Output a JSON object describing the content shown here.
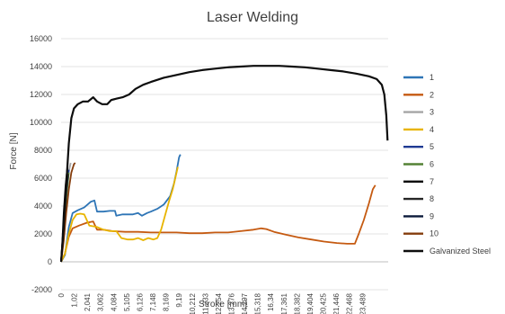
{
  "chart_data": {
    "type": "line",
    "title": "Laser Welding",
    "xlabel": "Stroke [mm]",
    "ylabel": "Force [N]",
    "xlim": [
      0,
      25.5
    ],
    "ylim": [
      -2000,
      16000
    ],
    "grid": true,
    "legend_position": "right",
    "y_ticks": [
      "-2000",
      "0",
      "2000",
      "4000",
      "6000",
      "8000",
      "10000",
      "12000",
      "14000",
      "16000"
    ],
    "x_ticks": [
      "0",
      "1,02",
      "2,041",
      "3,062",
      "4,084",
      "5,105",
      "6,126",
      "7,148",
      "8,169",
      "9,19",
      "10,212",
      "11,233",
      "12,254",
      "13,276",
      "14,297",
      "15,318",
      "16,34",
      "17,361",
      "18,382",
      "19,404",
      "20,425",
      "21,446",
      "22,468",
      "23,489"
    ],
    "series": [
      {
        "name": "1",
        "color": "#2e75b6",
        "points": [
          [
            0,
            0
          ],
          [
            0.3,
            500
          ],
          [
            0.6,
            2500
          ],
          [
            0.9,
            3500
          ],
          [
            1.3,
            3700
          ],
          [
            1.8,
            3900
          ],
          [
            2.3,
            4300
          ],
          [
            2.6,
            4400
          ],
          [
            2.8,
            3600
          ],
          [
            3.3,
            3600
          ],
          [
            3.8,
            3650
          ],
          [
            4.2,
            3650
          ],
          [
            4.3,
            3300
          ],
          [
            4.8,
            3400
          ],
          [
            5.2,
            3400
          ],
          [
            5.6,
            3400
          ],
          [
            6.0,
            3500
          ],
          [
            6.3,
            3300
          ],
          [
            6.7,
            3500
          ],
          [
            7.0,
            3600
          ],
          [
            7.5,
            3800
          ],
          [
            8.0,
            4100
          ],
          [
            8.5,
            4700
          ],
          [
            8.8,
            5600
          ],
          [
            9.0,
            6500
          ],
          [
            9.2,
            7500
          ],
          [
            9.3,
            7700
          ]
        ]
      },
      {
        "name": "2",
        "color": "#c55a11",
        "points": [
          [
            0,
            0
          ],
          [
            0.3,
            600
          ],
          [
            0.6,
            1800
          ],
          [
            0.9,
            2400
          ],
          [
            1.4,
            2600
          ],
          [
            2.0,
            2800
          ],
          [
            2.5,
            2900
          ],
          [
            2.8,
            2300
          ],
          [
            3.3,
            2300
          ],
          [
            4.0,
            2200
          ],
          [
            5.0,
            2150
          ],
          [
            6.0,
            2150
          ],
          [
            7.0,
            2100
          ],
          [
            8.0,
            2100
          ],
          [
            9.0,
            2100
          ],
          [
            10.0,
            2050
          ],
          [
            11.0,
            2050
          ],
          [
            12.0,
            2100
          ],
          [
            13.0,
            2100
          ],
          [
            14.0,
            2200
          ],
          [
            15.0,
            2300
          ],
          [
            15.6,
            2400
          ],
          [
            16.0,
            2350
          ],
          [
            16.6,
            2150
          ],
          [
            17.5,
            1950
          ],
          [
            18.5,
            1750
          ],
          [
            19.5,
            1600
          ],
          [
            20.5,
            1450
          ],
          [
            21.5,
            1350
          ],
          [
            22.3,
            1300
          ],
          [
            22.9,
            1300
          ],
          [
            23.2,
            2000
          ],
          [
            23.6,
            3000
          ],
          [
            24.0,
            4200
          ],
          [
            24.3,
            5200
          ],
          [
            24.5,
            5500
          ]
        ]
      },
      {
        "name": "3",
        "color": "#a5a5a5",
        "points": [
          [
            0,
            0
          ],
          [
            0.15,
            1500
          ],
          [
            0.3,
            3500
          ],
          [
            0.45,
            5000
          ],
          [
            0.6,
            6500
          ],
          [
            0.75,
            7100
          ]
        ]
      },
      {
        "name": "4",
        "color": "#e8b400",
        "points": [
          [
            0,
            0
          ],
          [
            0.3,
            600
          ],
          [
            0.6,
            2000
          ],
          [
            0.9,
            3000
          ],
          [
            1.2,
            3400
          ],
          [
            1.5,
            3450
          ],
          [
            1.8,
            3400
          ],
          [
            2.2,
            2600
          ],
          [
            2.8,
            2500
          ],
          [
            3.3,
            2300
          ],
          [
            3.8,
            2200
          ],
          [
            4.3,
            2200
          ],
          [
            4.7,
            1700
          ],
          [
            5.2,
            1600
          ],
          [
            5.6,
            1600
          ],
          [
            6.0,
            1700
          ],
          [
            6.4,
            1550
          ],
          [
            6.8,
            1700
          ],
          [
            7.2,
            1600
          ],
          [
            7.5,
            1700
          ],
          [
            7.8,
            2300
          ],
          [
            8.1,
            3300
          ],
          [
            8.4,
            4300
          ],
          [
            8.7,
            5200
          ],
          [
            9.0,
            6400
          ],
          [
            9.1,
            6800
          ]
        ]
      },
      {
        "name": "5",
        "color": "#1f3a93",
        "points": [
          [
            0,
            0
          ],
          [
            0.15,
            1600
          ],
          [
            0.3,
            3600
          ],
          [
            0.45,
            5300
          ],
          [
            0.6,
            6600
          ]
        ]
      },
      {
        "name": "6",
        "color": "#548235",
        "points": [
          [
            0,
            0
          ],
          [
            0.15,
            1500
          ],
          [
            0.3,
            3400
          ],
          [
            0.45,
            5100
          ],
          [
            0.6,
            6400
          ]
        ]
      },
      {
        "name": "7",
        "color": "#000000",
        "points": [
          [
            0,
            0
          ],
          [
            0.1,
            1500
          ],
          [
            0.2,
            3500
          ],
          [
            0.35,
            5500
          ],
          [
            0.5,
            6800
          ]
        ]
      },
      {
        "name": "8",
        "color": "#262626",
        "points": [
          [
            0,
            0
          ],
          [
            0.12,
            1400
          ],
          [
            0.25,
            3200
          ],
          [
            0.4,
            5000
          ],
          [
            0.55,
            6300
          ]
        ]
      },
      {
        "name": "9",
        "color": "#0b1a3a",
        "points": [
          [
            0,
            0
          ],
          [
            0.1,
            1300
          ],
          [
            0.22,
            3000
          ],
          [
            0.36,
            4800
          ],
          [
            0.5,
            6100
          ]
        ]
      },
      {
        "name": "10",
        "color": "#843c0c",
        "points": [
          [
            0,
            0
          ],
          [
            0.2,
            1500
          ],
          [
            0.4,
            3500
          ],
          [
            0.6,
            5200
          ],
          [
            0.8,
            6400
          ],
          [
            1.0,
            7000
          ],
          [
            1.1,
            7100
          ]
        ]
      },
      {
        "name": "Galvanized Steel",
        "color": "#0d0d0d",
        "points": [
          [
            0,
            0
          ],
          [
            0.2,
            2500
          ],
          [
            0.4,
            5500
          ],
          [
            0.6,
            8500
          ],
          [
            0.8,
            10300
          ],
          [
            1.0,
            11000
          ],
          [
            1.3,
            11300
          ],
          [
            1.7,
            11500
          ],
          [
            2.1,
            11500
          ],
          [
            2.5,
            11800
          ],
          [
            2.8,
            11500
          ],
          [
            3.2,
            11300
          ],
          [
            3.6,
            11300
          ],
          [
            3.9,
            11600
          ],
          [
            4.3,
            11700
          ],
          [
            4.8,
            11800
          ],
          [
            5.3,
            12000
          ],
          [
            5.8,
            12400
          ],
          [
            6.4,
            12700
          ],
          [
            7.0,
            12900
          ],
          [
            8.0,
            13200
          ],
          [
            9.0,
            13400
          ],
          [
            10.0,
            13600
          ],
          [
            11.0,
            13750
          ],
          [
            12.0,
            13850
          ],
          [
            13.0,
            13950
          ],
          [
            14.0,
            14000
          ],
          [
            15.0,
            14050
          ],
          [
            16.0,
            14050
          ],
          [
            17.0,
            14050
          ],
          [
            18.0,
            14000
          ],
          [
            19.0,
            13950
          ],
          [
            20.0,
            13850
          ],
          [
            21.0,
            13750
          ],
          [
            22.0,
            13650
          ],
          [
            23.0,
            13500
          ],
          [
            24.0,
            13300
          ],
          [
            24.6,
            13100
          ],
          [
            25.0,
            12700
          ],
          [
            25.2,
            12000
          ],
          [
            25.35,
            10500
          ],
          [
            25.45,
            8700
          ]
        ]
      }
    ]
  }
}
